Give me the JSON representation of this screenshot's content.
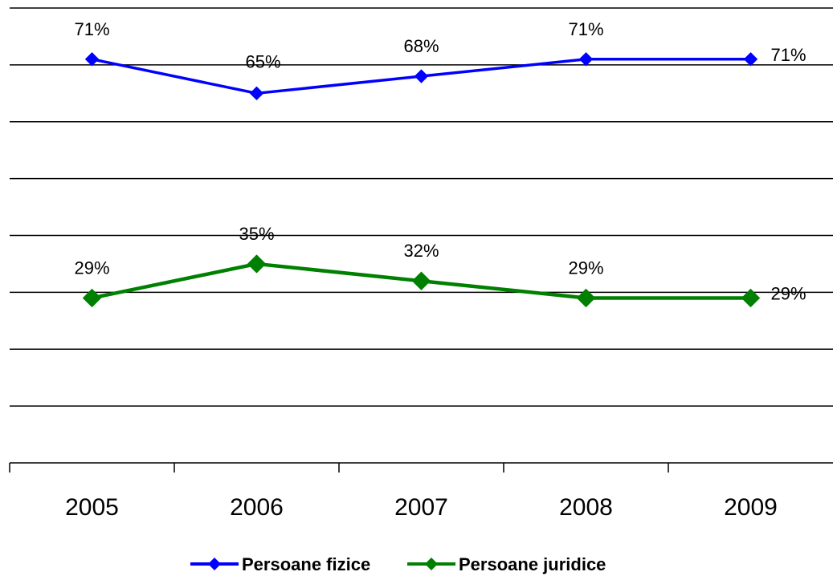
{
  "chart_data": {
    "type": "line",
    "categories": [
      "2005",
      "2006",
      "2007",
      "2008",
      "2009"
    ],
    "series": [
      {
        "name": "Persoane fizice",
        "color": "#0000ff",
        "marker": "diamond",
        "values": [
          71,
          65,
          68,
          71,
          71
        ],
        "labels": [
          "71%",
          "65%",
          "68%",
          "71%",
          "71%"
        ]
      },
      {
        "name": "Persoane juridice",
        "color": "#008000",
        "marker": "diamond",
        "values": [
          29,
          35,
          32,
          29,
          29
        ],
        "labels": [
          "29%",
          "35%",
          "32%",
          "29%",
          "29%"
        ]
      }
    ],
    "grid": true,
    "legend": "bottom",
    "title": "",
    "xlabel": "",
    "ylabel": ""
  }
}
